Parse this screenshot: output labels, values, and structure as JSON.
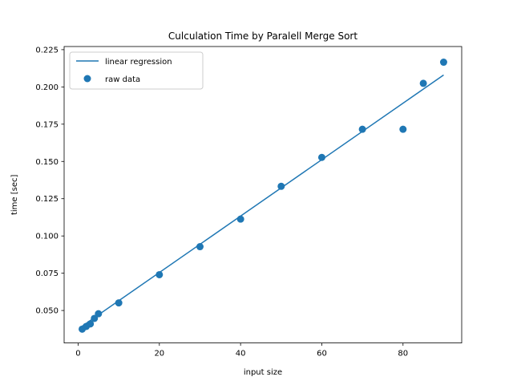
{
  "chart_data": {
    "type": "scatter",
    "title": "Culculation Time by Paralell Merge Sort",
    "xlabel": "input size",
    "ylabel": "time [sec]",
    "xlim": [
      -3.45,
      94.45
    ],
    "ylim": [
      0.0282,
      0.2271
    ],
    "xticks": [
      0,
      20,
      40,
      60,
      80
    ],
    "yticks": [
      0.05,
      0.075,
      0.1,
      0.125,
      0.15,
      0.175,
      0.2,
      0.225
    ],
    "ytick_labels": [
      "0.050",
      "0.075",
      "0.100",
      "0.125",
      "0.150",
      "0.175",
      "0.200",
      "0.225"
    ],
    "grid": false,
    "legend_position": "upper-left",
    "color": "#1f77b4",
    "series": [
      {
        "name": "linear regression",
        "kind": "line",
        "x": [
          1,
          90
        ],
        "y": [
          0.0395,
          0.208
        ]
      },
      {
        "name": "raw data",
        "kind": "scatter",
        "x": [
          1,
          2,
          3,
          4,
          5,
          10,
          20,
          30,
          40,
          50,
          60,
          70,
          80,
          85,
          90
        ],
        "y": [
          0.0375,
          0.0393,
          0.041,
          0.0447,
          0.0478,
          0.0551,
          0.074,
          0.0928,
          0.1113,
          0.1333,
          0.1527,
          0.1716,
          0.1716,
          0.2024,
          0.2166
        ]
      }
    ]
  }
}
